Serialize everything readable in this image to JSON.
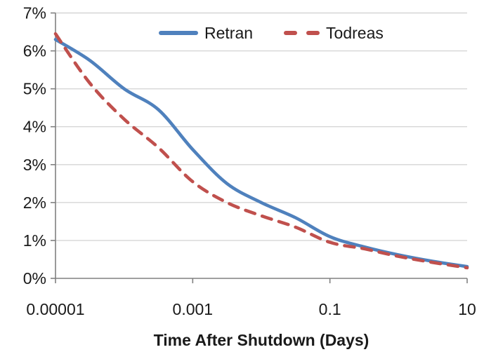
{
  "chart_data": {
    "type": "line",
    "title": "",
    "xlabel": "Time After Shutdown (Days)",
    "ylabel": "",
    "x_axis": {
      "scale": "log",
      "min": 1e-05,
      "max": 10,
      "tick_values": [
        1e-05,
        0.001,
        0.1,
        10
      ],
      "tick_labels": [
        "0.00001",
        "0.001",
        "0.1",
        "10"
      ]
    },
    "y_axis": {
      "min": 0,
      "max": 7,
      "tick_values": [
        0,
        1,
        2,
        3,
        4,
        5,
        6,
        7
      ],
      "tick_labels": [
        "0%",
        "1%",
        "2%",
        "3%",
        "4%",
        "5%",
        "6%",
        "7%"
      ]
    },
    "grid": "horizontal",
    "legend": {
      "position": "top-center"
    },
    "x": [
      1e-05,
      3.16e-05,
      0.0001,
      0.000316,
      0.001,
      0.00316,
      0.01,
      0.0316,
      0.1,
      0.316,
      1,
      3.16,
      10
    ],
    "series": [
      {
        "name": "Retran",
        "color": "#4F81BD",
        "line_style": "solid",
        "values": [
          6.3,
          5.75,
          5.0,
          4.45,
          3.4,
          2.5,
          2.0,
          1.6,
          1.1,
          0.83,
          0.62,
          0.45,
          0.31
        ]
      },
      {
        "name": "Todreas",
        "color": "#C0504D",
        "line_style": "dashed",
        "values": [
          6.45,
          5.15,
          4.2,
          3.45,
          2.55,
          2.0,
          1.65,
          1.35,
          0.95,
          0.78,
          0.58,
          0.42,
          0.28
        ]
      }
    ],
    "colors": {
      "axis": "#808080",
      "grid": "#D6D6D6",
      "text": "#1a1a1a",
      "background": "#FFFFFF"
    }
  }
}
